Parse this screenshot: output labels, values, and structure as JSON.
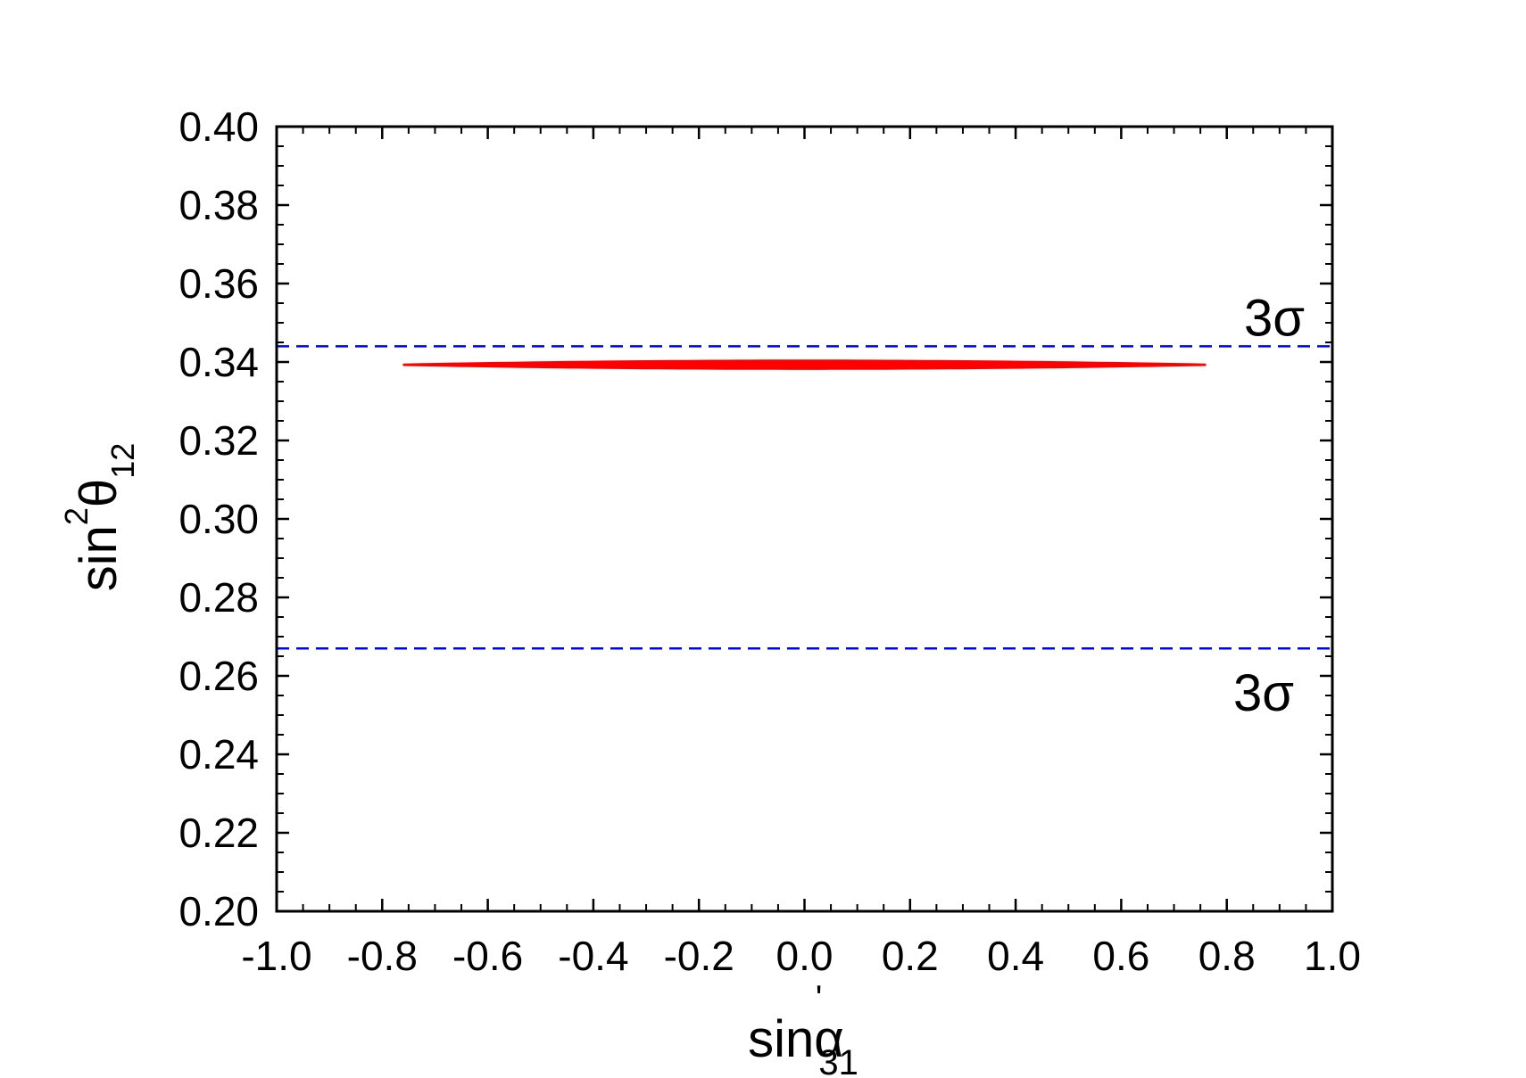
{
  "chart_data": {
    "type": "scatter",
    "xlabel": {
      "base": "sinα",
      "prime": "'",
      "sub": "31"
    },
    "ylabel": {
      "base": "sin",
      "sup": "2",
      "symbol": "θ",
      "sub": "12"
    },
    "xlim": [
      -1.0,
      1.0
    ],
    "ylim": [
      0.2,
      0.4
    ],
    "xticks": [
      "-1.0",
      "-0.8",
      "-0.6",
      "-0.4",
      "-0.2",
      "0.0",
      "0.2",
      "0.4",
      "0.6",
      "0.8",
      "1.0"
    ],
    "yticks": [
      "0.20",
      "0.22",
      "0.24",
      "0.26",
      "0.28",
      "0.30",
      "0.32",
      "0.34",
      "0.36",
      "0.38",
      "0.40"
    ],
    "x_minor_step": 0.05,
    "y_minor_step": 0.005,
    "series": [
      {
        "color": "#ff0000",
        "region": {
          "x_range": [
            -0.76,
            0.76
          ],
          "y_center": 0.3393,
          "y_halfwidth_center": 0.0012,
          "y_halfwidth_edge": 0.0002
        }
      }
    ],
    "reference_lines": [
      {
        "y": 0.344,
        "color": "#0000ff",
        "style": "dashed",
        "label": "3σ"
      },
      {
        "y": 0.267,
        "color": "#0000ff",
        "style": "dashed",
        "label": "3σ"
      }
    ],
    "grid": false,
    "legend": "none"
  }
}
